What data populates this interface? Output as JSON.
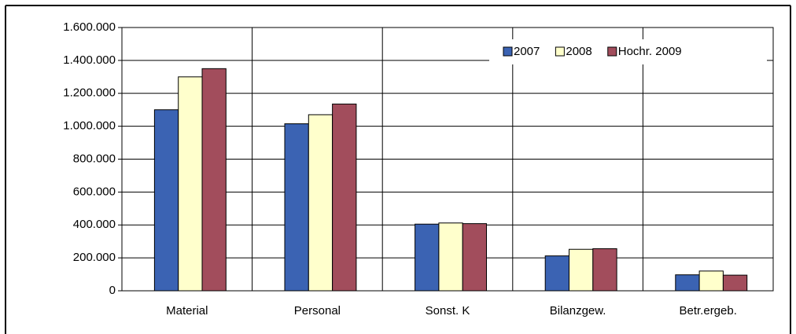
{
  "chart_data": {
    "type": "bar",
    "categories": [
      "Material",
      "Personal",
      "Sonst. K",
      "Bilanzgew.",
      "Betr.ergeb."
    ],
    "series": [
      {
        "name": "2007",
        "color": "#3b63b3",
        "values": [
          1100000,
          1015000,
          405000,
          212000,
          97000
        ]
      },
      {
        "name": "2008",
        "color": "#ffffcc",
        "values": [
          1300000,
          1070000,
          412000,
          252000,
          120000
        ]
      },
      {
        "name": "Hochr. 2009",
        "color": "#a24d5c",
        "values": [
          1350000,
          1135000,
          408000,
          256000,
          95000
        ]
      }
    ],
    "ylim": [
      0,
      1600000
    ],
    "yticks": [
      0,
      {
        "value": 200000,
        "label": "200.000"
      },
      {
        "value": 400000,
        "label": "400.000"
      },
      {
        "value": 600000,
        "label": "600.000"
      },
      {
        "value": 800000,
        "label": "800.000"
      },
      {
        "value": 1000000,
        "label": "1.000.000"
      },
      {
        "value": 1200000,
        "label": "1.200.000"
      },
      {
        "value": 1400000,
        "label": "1.400.000"
      },
      {
        "value": 1600000,
        "label": "1.600.000"
      }
    ],
    "grid": true,
    "legend": "top-right"
  }
}
